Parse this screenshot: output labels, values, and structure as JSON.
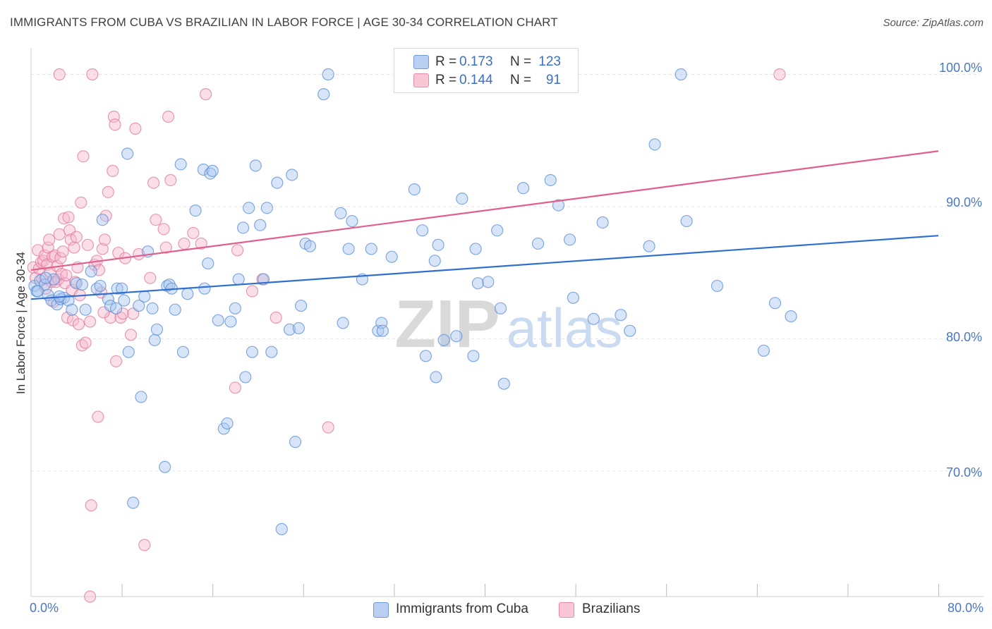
{
  "title": "IMMIGRANTS FROM CUBA VS BRAZILIAN IN LABOR FORCE | AGE 30-34 CORRELATION CHART",
  "source": "Source: ZipAtlas.com",
  "watermark": {
    "zip": "ZIP",
    "atlas": "atlas"
  },
  "colors": {
    "cuba_fill": "#a9c6ef",
    "cuba_stroke": "#5b8fd6",
    "cuba_line": "#2f6fce",
    "brazil_fill": "#f7b8cb",
    "brazil_stroke": "#e27a9c",
    "brazil_line": "#e05f8d",
    "tick_text": "#4a78c4",
    "grid": "#e3e3e3"
  },
  "legend_top": {
    "rows": [
      {
        "r_label": "R =",
        "r_value": "0.173",
        "n_label": "N =",
        "n_value": "123"
      },
      {
        "r_label": "R =",
        "r_value": "0.144",
        "n_label": "N =",
        "n_value": "91"
      }
    ]
  },
  "legend_bottom": {
    "items": [
      "Immigrants from Cuba",
      "Brazilians"
    ]
  },
  "chart_data": {
    "type": "scatter",
    "title": "IMMIGRANTS FROM CUBA VS BRAZILIAN IN LABOR FORCE | AGE 30-34 CORRELATION CHART",
    "xlabel": "",
    "ylabel": "In Labor Force | Age 30-34",
    "xlim": [
      0,
      80
    ],
    "ylim": [
      60.5,
      102
    ],
    "x_tick_labels": [
      "0.0%",
      "80.0%"
    ],
    "x_tick_values": [
      0,
      80
    ],
    "x_minor_ticks": [
      8,
      16,
      24,
      32,
      40,
      48,
      56,
      64,
      72,
      80
    ],
    "y_tick_labels": [
      "100.0%",
      "90.0%",
      "80.0%",
      "70.0%"
    ],
    "y_tick_values": [
      100,
      90,
      80,
      70
    ],
    "grid": true,
    "series": [
      {
        "name": "Immigrants from Cuba",
        "R": 0.173,
        "N": 123,
        "trend": {
          "x": [
            0,
            80
          ],
          "y": [
            83.0,
            87.8
          ]
        },
        "points": [
          [
            0.3,
            84.0
          ],
          [
            0.5,
            83.6
          ],
          [
            0.8,
            84.4
          ],
          [
            1.2,
            84.1
          ],
          [
            1.5,
            83.3
          ],
          [
            1.8,
            82.9
          ],
          [
            2.0,
            84.5
          ],
          [
            2.3,
            82.6
          ],
          [
            2.6,
            83.0
          ],
          [
            2.9,
            83.1
          ],
          [
            3.3,
            82.9
          ],
          [
            3.6,
            82.2
          ],
          [
            4.0,
            84.2
          ],
          [
            4.5,
            84.1
          ],
          [
            4.8,
            82.2
          ],
          [
            5.3,
            85.1
          ],
          [
            5.8,
            83.8
          ],
          [
            6.1,
            84.0
          ],
          [
            6.3,
            89.0
          ],
          [
            6.8,
            83.0
          ],
          [
            7.0,
            82.5
          ],
          [
            7.5,
            82.3
          ],
          [
            7.6,
            83.8
          ],
          [
            8.0,
            83.8
          ],
          [
            8.2,
            82.9
          ],
          [
            8.5,
            94.0
          ],
          [
            8.6,
            79.0
          ],
          [
            9.0,
            67.6
          ],
          [
            9.5,
            82.5
          ],
          [
            9.7,
            75.6
          ],
          [
            10.0,
            83.2
          ],
          [
            10.3,
            86.6
          ],
          [
            10.7,
            82.3
          ],
          [
            10.9,
            79.9
          ],
          [
            11.1,
            80.7
          ],
          [
            11.8,
            70.3
          ],
          [
            12.0,
            84.0
          ],
          [
            12.2,
            84.1
          ],
          [
            12.4,
            83.8
          ],
          [
            12.7,
            82.2
          ],
          [
            13.2,
            93.2
          ],
          [
            13.4,
            79.0
          ],
          [
            13.8,
            83.4
          ],
          [
            14.5,
            89.7
          ],
          [
            15.2,
            92.8
          ],
          [
            15.3,
            83.8
          ],
          [
            15.6,
            85.7
          ],
          [
            15.8,
            92.5
          ],
          [
            16.0,
            92.7
          ],
          [
            16.5,
            81.4
          ],
          [
            17.0,
            73.2
          ],
          [
            17.3,
            73.6
          ],
          [
            17.6,
            81.3
          ],
          [
            18.0,
            82.3
          ],
          [
            18.3,
            84.5
          ],
          [
            18.7,
            88.4
          ],
          [
            18.9,
            77.1
          ],
          [
            19.2,
            89.9
          ],
          [
            19.5,
            79.0
          ],
          [
            19.8,
            93.1
          ],
          [
            20.2,
            88.6
          ],
          [
            20.5,
            84.5
          ],
          [
            20.8,
            89.9
          ],
          [
            21.2,
            79.0
          ],
          [
            21.7,
            91.8
          ],
          [
            22.1,
            65.6
          ],
          [
            22.8,
            80.7
          ],
          [
            23.0,
            92.4
          ],
          [
            23.3,
            72.2
          ],
          [
            23.6,
            80.8
          ],
          [
            23.8,
            82.5
          ],
          [
            24.2,
            87.2
          ],
          [
            24.6,
            87.0
          ],
          [
            25.8,
            98.5
          ],
          [
            26.2,
            100.0
          ],
          [
            27.3,
            89.5
          ],
          [
            27.5,
            81.2
          ],
          [
            28.0,
            86.8
          ],
          [
            28.3,
            88.9
          ],
          [
            29.2,
            84.5
          ],
          [
            30.0,
            86.8
          ],
          [
            30.6,
            80.6
          ],
          [
            30.9,
            81.2
          ],
          [
            31.0,
            80.6
          ],
          [
            31.8,
            86.2
          ],
          [
            32.6,
            100.0
          ],
          [
            33.8,
            91.3
          ],
          [
            34.5,
            88.2
          ],
          [
            34.8,
            78.7
          ],
          [
            35.6,
            85.9
          ],
          [
            35.7,
            77.1
          ],
          [
            35.9,
            87.1
          ],
          [
            36.4,
            79.9
          ],
          [
            37.5,
            80.2
          ],
          [
            38.0,
            90.6
          ],
          [
            39.0,
            78.7
          ],
          [
            39.2,
            86.8
          ],
          [
            39.4,
            84.2
          ],
          [
            40.3,
            84.3
          ],
          [
            41.1,
            88.2
          ],
          [
            41.4,
            82.3
          ],
          [
            41.7,
            76.6
          ],
          [
            43.4,
            91.4
          ],
          [
            44.7,
            87.2
          ],
          [
            45.8,
            92.0
          ],
          [
            46.5,
            90.1
          ],
          [
            47.5,
            87.5
          ],
          [
            47.8,
            83.1
          ],
          [
            49.6,
            81.5
          ],
          [
            50.4,
            88.8
          ],
          [
            52.0,
            81.8
          ],
          [
            52.8,
            80.6
          ],
          [
            54.5,
            87.0
          ],
          [
            55.0,
            94.7
          ],
          [
            57.3,
            100.0
          ],
          [
            57.8,
            88.9
          ],
          [
            60.5,
            84.0
          ],
          [
            64.6,
            79.1
          ],
          [
            65.6,
            82.7
          ],
          [
            67.0,
            81.7
          ],
          [
            0.6,
            83.6
          ],
          [
            1.3,
            84.6
          ],
          [
            2.5,
            83.2
          ]
        ]
      },
      {
        "name": "Brazilians",
        "R": 0.144,
        "N": 91,
        "trend": {
          "x": [
            0,
            80
          ],
          "y": [
            85.2,
            94.2
          ]
        },
        "points": [
          [
            0.2,
            85.4
          ],
          [
            0.4,
            84.6
          ],
          [
            0.6,
            86.7
          ],
          [
            0.7,
            85.3
          ],
          [
            0.9,
            85.8
          ],
          [
            1.0,
            84.5
          ],
          [
            1.1,
            85.9
          ],
          [
            1.2,
            86.3
          ],
          [
            1.3,
            83.8
          ],
          [
            1.4,
            85.6
          ],
          [
            1.5,
            86.9
          ],
          [
            1.6,
            87.5
          ],
          [
            1.7,
            85.0
          ],
          [
            1.8,
            84.3
          ],
          [
            1.9,
            86.2
          ],
          [
            2.0,
            82.8
          ],
          [
            2.1,
            86.3
          ],
          [
            2.2,
            84.3
          ],
          [
            2.3,
            85.5
          ],
          [
            2.4,
            84.5
          ],
          [
            2.5,
            87.9
          ],
          [
            2.6,
            86.1
          ],
          [
            2.7,
            84.9
          ],
          [
            2.8,
            86.6
          ],
          [
            2.9,
            89.1
          ],
          [
            3.0,
            84.2
          ],
          [
            3.1,
            84.8
          ],
          [
            3.2,
            81.6
          ],
          [
            3.3,
            89.2
          ],
          [
            3.4,
            88.2
          ],
          [
            3.5,
            87.5
          ],
          [
            3.6,
            83.7
          ],
          [
            3.7,
            81.4
          ],
          [
            3.8,
            86.9
          ],
          [
            3.9,
            84.3
          ],
          [
            4.0,
            87.7
          ],
          [
            4.1,
            85.4
          ],
          [
            4.2,
            81.1
          ],
          [
            4.3,
            83.3
          ],
          [
            4.4,
            90.3
          ],
          [
            4.5,
            79.5
          ],
          [
            4.6,
            93.8
          ],
          [
            4.8,
            79.7
          ],
          [
            5.0,
            87.1
          ],
          [
            5.2,
            81.3
          ],
          [
            5.6,
            85.6
          ],
          [
            5.9,
            74.1
          ],
          [
            6.2,
            83.5
          ],
          [
            6.3,
            86.8
          ],
          [
            6.5,
            87.5
          ],
          [
            6.6,
            89.3
          ],
          [
            6.8,
            91.1
          ],
          [
            7.0,
            81.6
          ],
          [
            7.2,
            92.7
          ],
          [
            7.3,
            96.8
          ],
          [
            7.4,
            96.2
          ],
          [
            7.5,
            78.3
          ],
          [
            7.7,
            86.5
          ],
          [
            7.9,
            81.6
          ],
          [
            8.1,
            81.9
          ],
          [
            8.3,
            86.1
          ],
          [
            8.8,
            80.3
          ],
          [
            9.0,
            81.9
          ],
          [
            9.2,
            95.9
          ],
          [
            9.5,
            86.4
          ],
          [
            10.0,
            64.4
          ],
          [
            10.5,
            84.6
          ],
          [
            10.8,
            91.8
          ],
          [
            11.0,
            89.0
          ],
          [
            11.7,
            88.3
          ],
          [
            11.9,
            86.9
          ],
          [
            12.1,
            96.8
          ],
          [
            12.3,
            92.0
          ],
          [
            13.5,
            87.2
          ],
          [
            14.3,
            88.0
          ],
          [
            15.0,
            87.2
          ],
          [
            15.4,
            98.5
          ],
          [
            18.0,
            76.3
          ],
          [
            18.2,
            86.7
          ],
          [
            19.5,
            83.6
          ],
          [
            20.4,
            84.5
          ],
          [
            21.6,
            81.6
          ],
          [
            26.2,
            73.3
          ],
          [
            2.5,
            100.0
          ],
          [
            5.4,
            100.0
          ],
          [
            66.0,
            100.0
          ],
          [
            5.2,
            60.5
          ],
          [
            5.3,
            67.4
          ],
          [
            5.8,
            85.9
          ],
          [
            6.0,
            85.2
          ],
          [
            6.4,
            82.0
          ]
        ]
      }
    ]
  }
}
